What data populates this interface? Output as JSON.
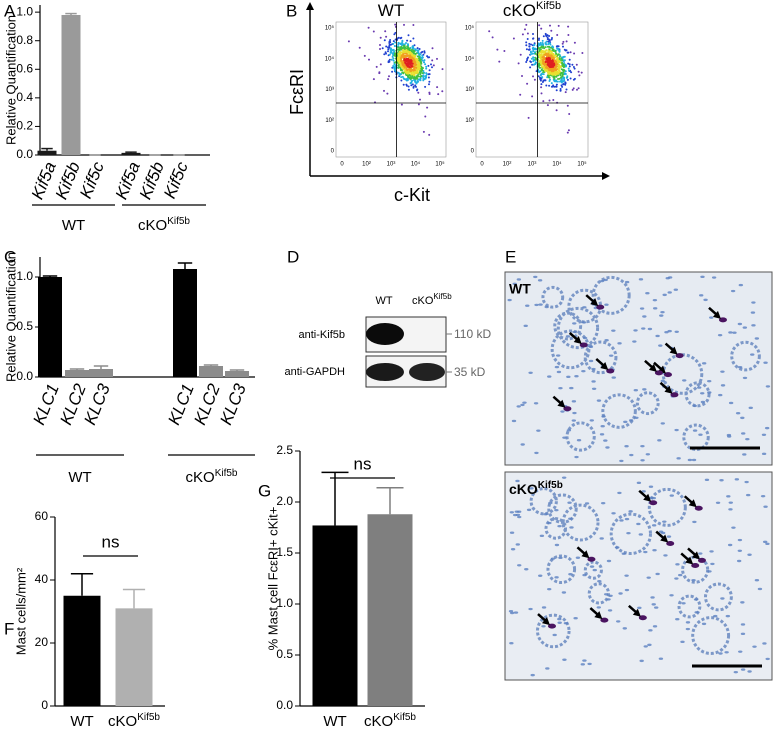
{
  "panel_labels": [
    "A",
    "B",
    "C",
    "D",
    "E",
    "F",
    "G"
  ],
  "chart_data": [
    {
      "type": "bar",
      "y_label": "Relative Quantification",
      "categories": [
        "Kif5a",
        "Kif5b",
        "Kif5c",
        "Kif5a",
        "Kif5b",
        "Kif5c"
      ],
      "values": [
        0.03,
        0.98,
        0.0,
        0.015,
        0.0,
        0.0
      ],
      "errors": [
        0.015,
        0.01,
        0.0,
        0.005,
        0.0,
        0.0
      ],
      "colors": [
        "#1a1a1a",
        "#9a9a9a",
        "#9a9a9a",
        "#1a1a1a",
        "#9a9a9a",
        "#9a9a9a"
      ],
      "groups": [
        "WT",
        "cKO"
      ],
      "group_superscripts": [
        null,
        "Kif5b"
      ],
      "ylim": [
        0,
        1.05
      ],
      "yticks": [
        {
          "value": 0,
          "label": "0.0"
        },
        0.2,
        0.4,
        0.6,
        0.8,
        {
          "value": 1,
          "label": "1.0"
        }
      ]
    },
    {
      "type": "bar",
      "y_label": "Relative Quantification",
      "categories": [
        "KLC1",
        "KLC2",
        "KLC3",
        "KLC1",
        "KLC2",
        "KLC3"
      ],
      "values": [
        1.0,
        0.07,
        0.08,
        1.08,
        0.11,
        0.06
      ],
      "errors": [
        0.01,
        0.01,
        0.03,
        0.06,
        0.01,
        0.01
      ],
      "colors": [
        "#000000",
        "#8c8c8c",
        "#8c8c8c",
        "#000000",
        "#8c8c8c",
        "#8c8c8c"
      ],
      "groups": [
        "WT",
        "cKO"
      ],
      "group_superscripts": [
        null,
        "Kif5b"
      ],
      "ylim": [
        0,
        1.2
      ],
      "yticks": [
        {
          "value": 0,
          "label": "0.0"
        },
        0.5,
        {
          "value": 1,
          "label": "1.0"
        }
      ]
    },
    {
      "type": "bar",
      "y_label": "Mast cells/mm²",
      "categories": [
        "WT",
        "cKO"
      ],
      "category_superscripts": [
        null,
        "Kif5b"
      ],
      "values": [
        35,
        31
      ],
      "errors": [
        7,
        6
      ],
      "colors": [
        "#000000",
        "#b0b0b0"
      ],
      "annotation": "ns",
      "ylim": [
        0,
        60
      ],
      "yticks": [
        0,
        20,
        40,
        60
      ]
    },
    {
      "type": "bar",
      "y_label": "% Mast cell FcεRI+ cKit+",
      "categories": [
        "WT",
        "cKO"
      ],
      "category_superscripts": [
        null,
        "Kif5b"
      ],
      "values": [
        1.77,
        1.88
      ],
      "errors": [
        0.52,
        0.26
      ],
      "colors": [
        "#000000",
        "#7f7f7f"
      ],
      "annotation": "ns",
      "ylim": [
        0,
        2.5
      ],
      "yticks": [
        {
          "value": 0,
          "label": "0.0"
        },
        0.5,
        {
          "value": 1,
          "label": "1.0"
        },
        1.5,
        {
          "value": 2,
          "label": "2.0"
        },
        2.5
      ]
    }
  ],
  "flow": {
    "y_label": "FcεRI",
    "x_label": "c-Kit",
    "plots": [
      {
        "title": "WT",
        "title_sup": null
      },
      {
        "title": "cKO",
        "title_sup": "Kif5b"
      }
    ],
    "ticks": [
      "0",
      "10²",
      "10³",
      "10⁴",
      "10⁵"
    ]
  },
  "blot": {
    "lanes": [
      "WT",
      "cKO"
    ],
    "lane_sup": "Kif5b",
    "rows": [
      {
        "label": "anti-Kif5b",
        "size": "110 kD"
      },
      {
        "label": "anti-GAPDH",
        "size": "35 kD"
      }
    ]
  },
  "histology": {
    "labels": [
      "WT",
      "cKO"
    ],
    "label_sup": "Kif5b"
  }
}
